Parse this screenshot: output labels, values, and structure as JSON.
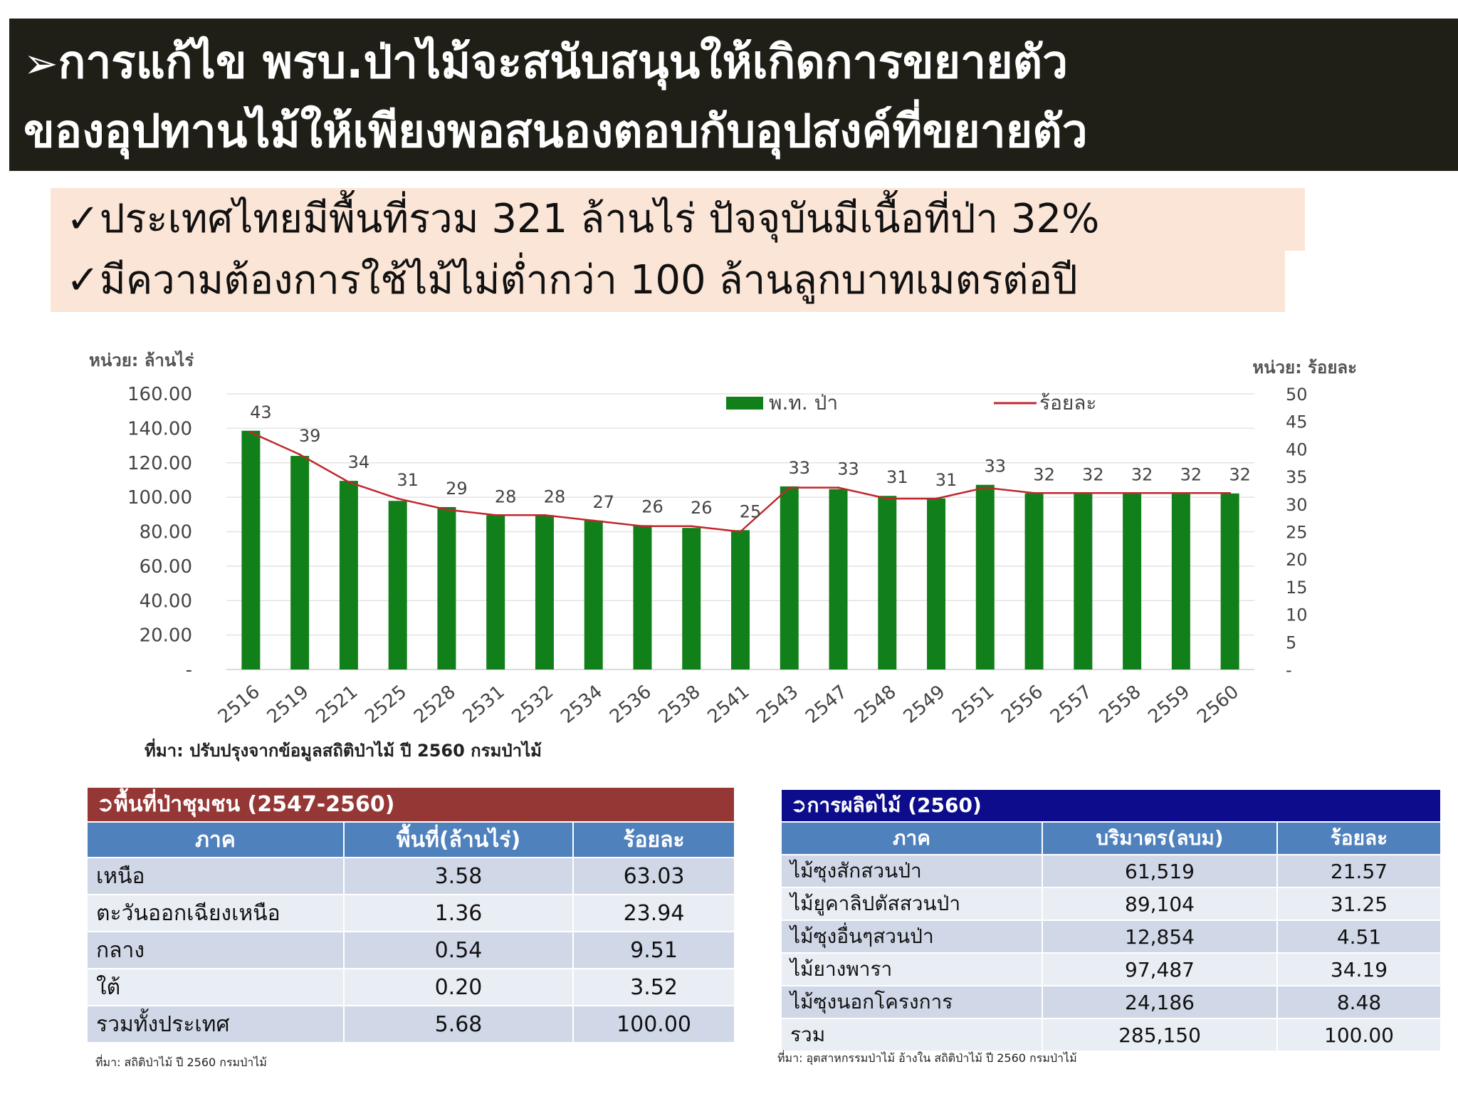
{
  "title": {
    "arrow": "➢",
    "line1": "การแก้ไข พรบ.ป่าไม้จะสนับสนุนให้เกิดการขยายตัว",
    "line2": "ของอุปทานไม้ให้เพียงพอสนองตอบกับอุปสงค์ที่ขยายตัว"
  },
  "bullets": [
    "✓ประเทศไทยมีพื้นที่รวม 321 ล้านไร่ ปัจจุบันมีเนื้อที่ป่า 32%",
    "✓มีความต้องการใช้ไม้ไม่ต่ำกว่า 100 ล้านลูกบาทเมตรต่อปี"
  ],
  "chart_data": {
    "type": "bar",
    "unit_left": "หน่วย: ล้านไร่",
    "unit_right": "หน่วย: ร้อยละ",
    "categories": [
      "2516",
      "2519",
      "2521",
      "2525",
      "2528",
      "2531",
      "2532",
      "2534",
      "2536",
      "2538",
      "2541",
      "2543",
      "2547",
      "2548",
      "2549",
      "2551",
      "2556",
      "2557",
      "2558",
      "2559",
      "2560"
    ],
    "series": [
      {
        "name": "พ.ท. ป่า",
        "kind": "bar",
        "axis": "left",
        "values": [
          138.6,
          124.0,
          109.5,
          97.9,
          94.3,
          89.6,
          89.6,
          86.5,
          83.8,
          82.2,
          80.9,
          106.3,
          104.7,
          100.8,
          99.3,
          107.2,
          102.3,
          102.3,
          102.2,
          102.1,
          102.2
        ]
      },
      {
        "name": "ร้อยละ",
        "kind": "line",
        "axis": "right",
        "values": [
          43,
          39,
          34,
          31,
          29,
          28,
          28,
          27,
          26,
          26,
          25,
          33,
          33,
          31,
          31,
          33,
          32,
          32,
          32,
          32,
          32
        ]
      }
    ],
    "data_labels": [
      "43",
      "39",
      "34",
      "31",
      "29",
      "28",
      "28",
      "27",
      "26",
      "26",
      "25",
      "33",
      "33",
      "31",
      "31",
      "33",
      "32",
      "32",
      "32",
      "32",
      "32"
    ],
    "y_left_ticks": [
      "160.00",
      "140.00",
      "120.00",
      "100.00",
      "80.00",
      "60.00",
      "40.00",
      "20.00",
      "-"
    ],
    "y_right_ticks": [
      "50",
      "45",
      "40",
      "35",
      "30",
      "25",
      "20",
      "15",
      "10",
      "5",
      "-"
    ],
    "ylim_left": [
      0,
      160
    ],
    "ylim_right": [
      0,
      50
    ],
    "legend_position": "top-right",
    "bar_color": "#12801a",
    "line_color": "#c0282d",
    "grid": true,
    "source": "ที่มา: ปรับปรุงจากข้อมูลสถิติป่าไม้ ปี 2560 กรมป่าไม้"
  },
  "table1": {
    "title": "➲พื้นที่ป่าชุมชน (2547-2560)",
    "title_color": "#953735",
    "headers": [
      "ภาค",
      "พื้นที่(ล้านไร่)",
      "ร้อยละ"
    ],
    "rows": [
      [
        "เหนือ",
        "3.58",
        "63.03"
      ],
      [
        "ตะวันออกเฉียงเหนือ",
        "1.36",
        "23.94"
      ],
      [
        "กลาง",
        "0.54",
        "9.51"
      ],
      [
        "ใต้",
        "0.20",
        "3.52"
      ],
      [
        "รวมทั้งประเทศ",
        "5.68",
        "100.00"
      ]
    ],
    "source": "ที่มา: สถิติป่าไม้ ปี 2560 กรมป่าไม้"
  },
  "table2": {
    "title": "➲การผลิตไม้ (2560)",
    "title_color": "#0c0c8c",
    "headers": [
      "ภาค",
      "บริมาตร(ลบม)",
      "ร้อยละ"
    ],
    "rows": [
      [
        "ไม้ซุงสักสวนป่า",
        "61,519",
        "21.57"
      ],
      [
        "ไม้ยูคาลิปตัสสวนป่า",
        "89,104",
        "31.25"
      ],
      [
        "ไม้ซุงอื่นๆสวนป่า",
        "12,854",
        "4.51"
      ],
      [
        "ไม้ยางพารา",
        "97,487",
        "34.19"
      ],
      [
        "ไม้ซุงนอกโครงการ",
        "24,186",
        "8.48"
      ],
      [
        "รวม",
        "285,150",
        "100.00"
      ]
    ],
    "source": "ที่มา: อุตสาหกรรมป่าไม้ อ้างใน สถิติป่าไม้ ปี 2560 กรมป่าไม้"
  }
}
